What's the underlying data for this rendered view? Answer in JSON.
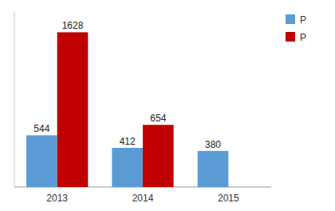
{
  "chart_data": {
    "type": "bar",
    "categories": [
      "2013",
      "2014",
      "2015"
    ],
    "series": [
      {
        "name": "P",
        "color": "#5B9BD5",
        "values": [
          544,
          412,
          380
        ]
      },
      {
        "name": "P",
        "color": "#C00000",
        "values": [
          1628,
          654,
          null
        ]
      }
    ],
    "ylim": [
      0,
      1850
    ],
    "grid": false,
    "legend": "upper right",
    "data_labels": true,
    "tick_labels": "x"
  }
}
